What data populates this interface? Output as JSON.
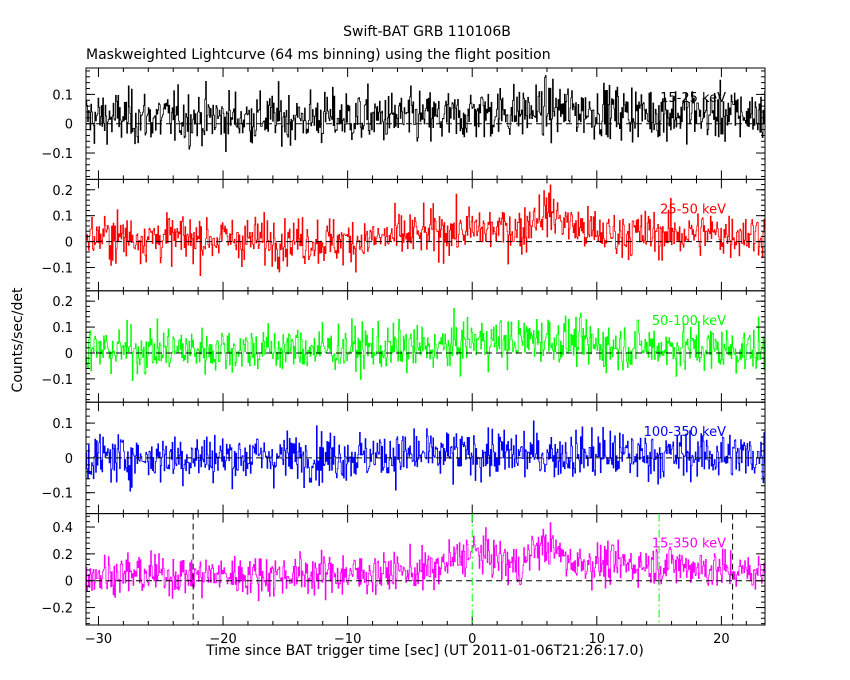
{
  "chart_data": {
    "type": "line",
    "title": "Swift-BAT GRB 110106B",
    "subtitle": "Maskweighted Lightcurve (64 ms binning) using the flight position",
    "xlabel": "Time since BAT trigger time [sec] (UT 2011-01-06T21:26:17.0)",
    "ylabel": "Counts/sec/det",
    "xlim": [
      -31,
      23.5
    ],
    "x_ticks": [
      -30,
      -20,
      -10,
      0,
      10,
      20
    ],
    "bin_seconds": 0.064,
    "grid": false,
    "zero_line": "dashed",
    "panels": [
      {
        "name": "15-25 keV",
        "color": "#000000",
        "ylim": [
          -0.19,
          0.19
        ],
        "y_ticks": [
          -0.1,
          0,
          0.1
        ],
        "baseline": [
          [
            -31,
            0.02
          ],
          [
            -1,
            0.02
          ],
          [
            0,
            0.04
          ],
          [
            4,
            0.04
          ],
          [
            6,
            0.05
          ],
          [
            12,
            0.04
          ],
          [
            23.5,
            0.03
          ]
        ],
        "noise_sigma": 0.045
      },
      {
        "name": "25-50 keV",
        "color": "#ff0000",
        "ylim": [
          -0.19,
          0.24
        ],
        "y_ticks": [
          -0.1,
          0,
          0.1,
          0.2
        ],
        "baseline": [
          [
            -31,
            0.02
          ],
          [
            -10,
            0.0
          ],
          [
            -6,
            0.02
          ],
          [
            -2,
            0.04
          ],
          [
            3,
            0.05
          ],
          [
            4,
            0.04
          ],
          [
            5,
            0.1
          ],
          [
            6,
            0.12
          ],
          [
            8,
            0.06
          ],
          [
            10,
            0.03
          ],
          [
            23.5,
            0.03
          ]
        ],
        "noise_sigma": 0.045
      },
      {
        "name": "50-100 keV",
        "color": "#00ff00",
        "ylim": [
          -0.19,
          0.24
        ],
        "y_ticks": [
          -0.1,
          0,
          0.1,
          0.2
        ],
        "baseline": [
          [
            -31,
            0.01
          ],
          [
            -2,
            0.02
          ],
          [
            0,
            0.05
          ],
          [
            3,
            0.04
          ],
          [
            5,
            0.06
          ],
          [
            7,
            0.05
          ],
          [
            10,
            0.03
          ],
          [
            23.5,
            0.01
          ]
        ],
        "noise_sigma": 0.045
      },
      {
        "name": "100-350 keV",
        "color": "#0000ff",
        "ylim": [
          -0.16,
          0.16
        ],
        "y_ticks": [
          -0.1,
          0,
          0.1
        ],
        "baseline": [
          [
            -31,
            0.0
          ],
          [
            -10,
            0.005
          ],
          [
            0,
            0.01
          ],
          [
            10,
            0.01
          ],
          [
            23.5,
            0.005
          ]
        ],
        "noise_sigma": 0.035
      },
      {
        "name": "15-350 keV",
        "color": "#ff00ff",
        "ylim": [
          -0.33,
          0.5
        ],
        "y_ticks": [
          -0.2,
          0,
          0.2,
          0.4
        ],
        "baseline": [
          [
            -31,
            0.05
          ],
          [
            -20,
            0.04
          ],
          [
            -10,
            0.05
          ],
          [
            -3,
            0.08
          ],
          [
            -1,
            0.18
          ],
          [
            0,
            0.22
          ],
          [
            2,
            0.17
          ],
          [
            3,
            0.12
          ],
          [
            4,
            0.1
          ],
          [
            5,
            0.25
          ],
          [
            6,
            0.26
          ],
          [
            8,
            0.14
          ],
          [
            12,
            0.12
          ],
          [
            16,
            0.12
          ],
          [
            23.5,
            0.05
          ]
        ],
        "noise_sigma": 0.075
      }
    ],
    "markers": [
      {
        "x": -22.4,
        "style": "dashed",
        "color": "#000000"
      },
      {
        "x": 0,
        "style": "dash-dot",
        "color": "#00ff00"
      },
      {
        "x": 15,
        "style": "dash-dot",
        "color": "#00ff00"
      },
      {
        "x": 20.9,
        "style": "dashed",
        "color": "#000000"
      }
    ]
  }
}
